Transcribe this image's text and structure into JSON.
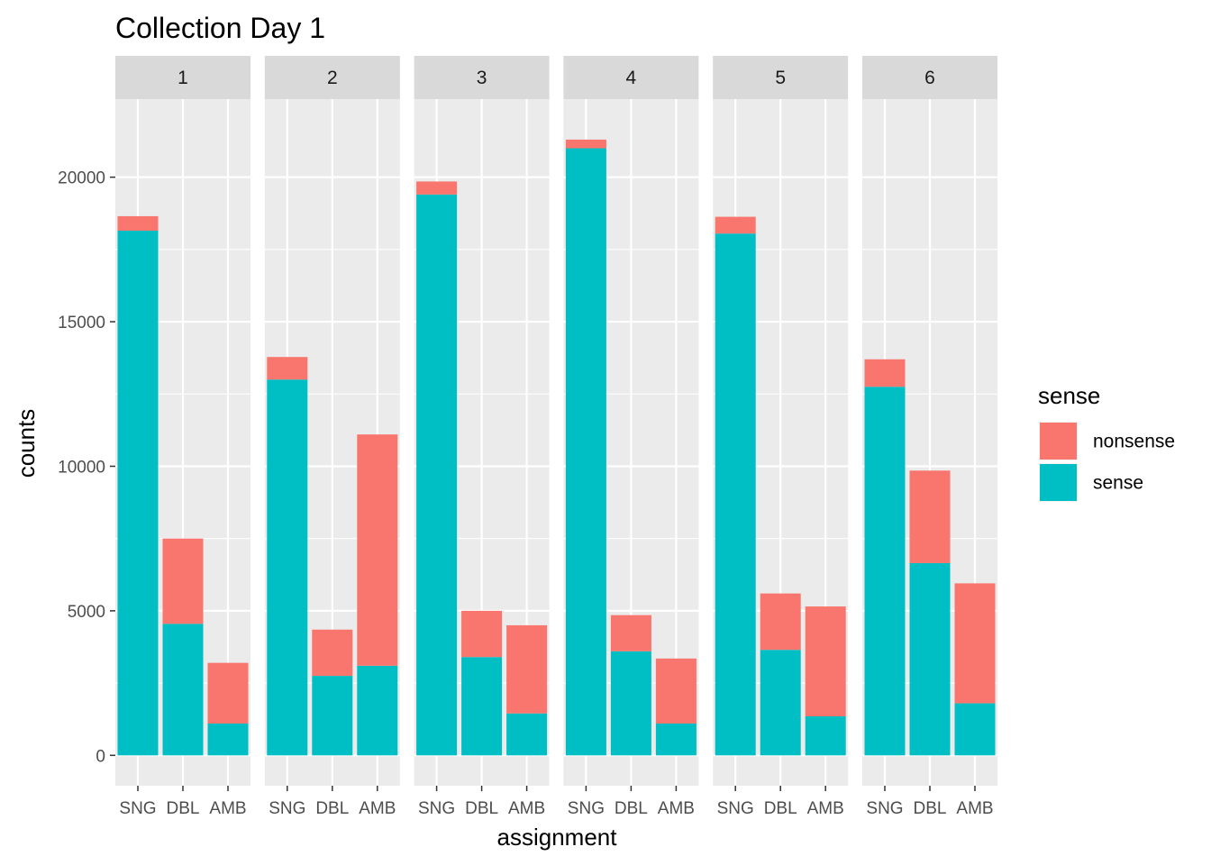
{
  "chart_data": {
    "type": "bar",
    "stacked": true,
    "title": "Collection Day 1",
    "xlabel": "assignment",
    "ylabel": "counts",
    "ylim": [
      -1050,
      22700
    ],
    "yticks": [
      0,
      5000,
      10000,
      15000,
      20000
    ],
    "categories": [
      "SNG",
      "DBL",
      "AMB"
    ],
    "facets": [
      {
        "label": "1",
        "sense": [
          18150,
          4550,
          1100
        ],
        "nonsense": [
          500,
          2950,
          2100
        ]
      },
      {
        "label": "2",
        "sense": [
          13000,
          2750,
          3100
        ],
        "nonsense": [
          780,
          1600,
          8000
        ]
      },
      {
        "label": "3",
        "sense": [
          19400,
          3400,
          1450
        ],
        "nonsense": [
          450,
          1600,
          3050
        ]
      },
      {
        "label": "4",
        "sense": [
          21000,
          3600,
          1100
        ],
        "nonsense": [
          300,
          1250,
          2250
        ]
      },
      {
        "label": "5",
        "sense": [
          18050,
          3650,
          1350
        ],
        "nonsense": [
          580,
          1950,
          3800
        ]
      },
      {
        "label": "6",
        "sense": [
          12750,
          6650,
          1800
        ],
        "nonsense": [
          950,
          3200,
          4150
        ]
      }
    ],
    "legend": {
      "title": "sense",
      "position": "right",
      "entries": [
        {
          "name": "nonsense",
          "color": "#F8766D"
        },
        {
          "name": "sense",
          "color": "#00BFC4"
        }
      ]
    },
    "grid": true,
    "theme": {
      "panel_bg": "#EBEBEB",
      "strip_bg": "#D9D9D9",
      "grid_color": "#FFFFFF"
    }
  }
}
